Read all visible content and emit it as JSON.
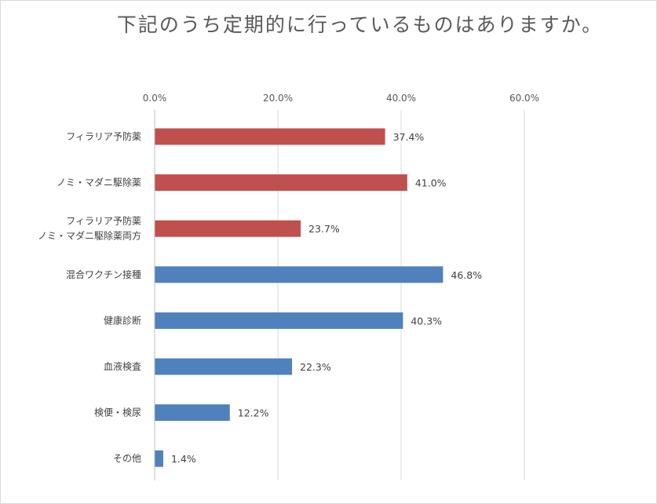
{
  "chart_data": {
    "type": "bar",
    "orientation": "horizontal",
    "title": "下記のうち定期的に行っているものはありますか。",
    "xlabel": "",
    "ylabel": "",
    "xlim": [
      0,
      60
    ],
    "x_ticks": [
      0,
      20,
      40,
      60
    ],
    "x_tick_labels": [
      "0.0%",
      "20.0%",
      "40.0%",
      "60.0%"
    ],
    "grid": true,
    "categories": [
      [
        "フィラリア予防薬"
      ],
      [
        "ノミ・マダニ駆除薬"
      ],
      [
        "フィラリア予防薬",
        "ノミ・マダニ駆除薬両方"
      ],
      [
        "混合ワクチン接種"
      ],
      [
        "健康診断"
      ],
      [
        "血液検査"
      ],
      [
        "検便・検尿"
      ],
      [
        "その他"
      ]
    ],
    "values": [
      37.4,
      41.0,
      23.7,
      46.8,
      40.3,
      22.3,
      12.2,
      1.4
    ],
    "value_labels": [
      "37.4%",
      "41.0%",
      "23.7%",
      "46.8%",
      "40.3%",
      "22.3%",
      "12.2%",
      "1.4%"
    ],
    "bar_colors": [
      "#c0504d",
      "#c0504d",
      "#c0504d",
      "#4f81bd",
      "#4f81bd",
      "#4f81bd",
      "#4f81bd",
      "#4f81bd"
    ]
  },
  "colors": {
    "red": "#c0504d",
    "blue": "#4f81bd",
    "grid": "#d9d9d9",
    "text": "#404040"
  }
}
